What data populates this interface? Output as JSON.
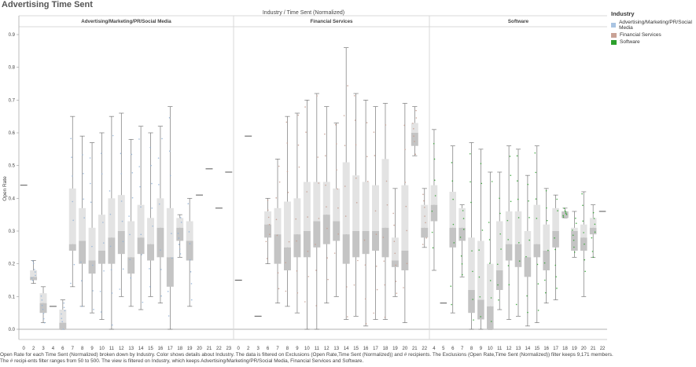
{
  "page_title": "Advertising Time Sent",
  "column_caption": "Industry  /  Time Sent (Normalized)",
  "legend": {
    "title": "Industry",
    "items": [
      {
        "label": "Advertising/Marketing/PR/Social Media",
        "color": "#a9c4e2"
      },
      {
        "label": "Financial Services",
        "color": "#c9a296"
      },
      {
        "label": "Software",
        "color": "#2ca02c"
      }
    ]
  },
  "caption": "Open Rate for each Time Sent (Normalized) broken down by Industry.  Color shows details about Industry. The data is filtered on Exclusions (Open Rate,Time Sent (Normalized)) and # recipients. The Exclusions (Open Rate,Time Sent (Normalized)) filter keeps 9,171 members. The # recipi-ents filter ranges from 50 to 500. The view is filtered on Industry, which keeps Advertising/Marketing/PR/Social Media, Financial Services and Software.",
  "chart_data": {
    "type": "box",
    "ylabel": "Open Rate",
    "ylim": [
      0,
      0.9
    ],
    "y_ticks": [
      "0.0",
      "0.1",
      "0.2",
      "0.3",
      "0.4",
      "0.5",
      "0.6",
      "0.7",
      "0.8",
      "0.9"
    ],
    "grid": false,
    "panels": [
      {
        "name": "Advertising/Marketing/PR/Social Media",
        "color": "#8fb0d6",
        "boxes": [
          {
            "x": "0",
            "single": 0.44
          },
          {
            "x": "2",
            "min": 0.14,
            "q1": 0.15,
            "median": 0.16,
            "q3": 0.18,
            "max": 0.21
          },
          {
            "x": "3",
            "min": 0.02,
            "q1": 0.05,
            "median": 0.08,
            "q3": 0.11,
            "max": 0.13
          },
          {
            "x": "4",
            "single": 0.07
          },
          {
            "x": "6",
            "min": 0.0,
            "q1": 0.0,
            "median": 0.02,
            "q3": 0.06,
            "max": 0.09
          },
          {
            "x": "7",
            "min": 0.13,
            "q1": 0.24,
            "median": 0.26,
            "q3": 0.43,
            "max": 0.65
          },
          {
            "x": "8",
            "min": 0.07,
            "q1": 0.2,
            "median": 0.27,
            "q3": 0.37,
            "max": 0.59
          },
          {
            "x": "9",
            "min": 0.05,
            "q1": 0.17,
            "median": 0.21,
            "q3": 0.31,
            "max": 0.57
          },
          {
            "x": "10",
            "min": 0.03,
            "q1": 0.2,
            "median": 0.24,
            "q3": 0.35,
            "max": 0.6
          },
          {
            "x": "11",
            "min": 0.0,
            "q1": 0.2,
            "median": 0.28,
            "q3": 0.4,
            "max": 0.65
          },
          {
            "x": "12",
            "min": 0.1,
            "q1": 0.23,
            "median": 0.3,
            "q3": 0.41,
            "max": 0.66
          },
          {
            "x": "13",
            "min": 0.07,
            "q1": 0.17,
            "median": 0.22,
            "q3": 0.33,
            "max": 0.58
          },
          {
            "x": "14",
            "min": 0.06,
            "q1": 0.23,
            "median": 0.28,
            "q3": 0.38,
            "max": 0.62
          },
          {
            "x": "15",
            "min": 0.1,
            "q1": 0.21,
            "median": 0.26,
            "q3": 0.34,
            "max": 0.6
          },
          {
            "x": "16",
            "min": 0.08,
            "q1": 0.22,
            "median": 0.31,
            "q3": 0.4,
            "max": 0.62
          },
          {
            "x": "17",
            "min": 0.0,
            "q1": 0.13,
            "median": 0.22,
            "q3": 0.37,
            "max": 0.68
          },
          {
            "x": "18",
            "min": 0.22,
            "q1": 0.27,
            "median": 0.31,
            "q3": 0.34,
            "max": 0.35
          },
          {
            "x": "19",
            "min": 0.07,
            "q1": 0.21,
            "median": 0.27,
            "q3": 0.33,
            "max": 0.4
          },
          {
            "x": "20",
            "single": 0.41
          },
          {
            "x": "21",
            "single": 0.49
          },
          {
            "x": "22",
            "single": 0.37
          },
          {
            "x": "23",
            "single": 0.48
          }
        ]
      },
      {
        "name": "Financial Services",
        "color": "#c49a8c",
        "boxes": [
          {
            "x": "0",
            "single": 0.15
          },
          {
            "x": "2",
            "single": 0.59
          },
          {
            "x": "3",
            "single": 0.04
          },
          {
            "x": "6",
            "min": 0.2,
            "q1": 0.28,
            "median": 0.32,
            "q3": 0.36,
            "max": 0.4
          },
          {
            "x": "7",
            "min": 0.08,
            "q1": 0.2,
            "median": 0.29,
            "q3": 0.37,
            "max": 0.52
          },
          {
            "x": "8",
            "min": 0.07,
            "q1": 0.18,
            "median": 0.25,
            "q3": 0.39,
            "max": 0.65
          },
          {
            "x": "9",
            "min": 0.05,
            "q1": 0.22,
            "median": 0.29,
            "q3": 0.4,
            "max": 0.66
          },
          {
            "x": "10",
            "min": 0.0,
            "q1": 0.22,
            "median": 0.3,
            "q3": 0.45,
            "max": 0.7
          },
          {
            "x": "11",
            "min": 0.0,
            "q1": 0.25,
            "median": 0.33,
            "q3": 0.45,
            "max": 0.72
          },
          {
            "x": "12",
            "min": 0.08,
            "q1": 0.26,
            "median": 0.35,
            "q3": 0.45,
            "max": 0.68
          },
          {
            "x": "13",
            "min": 0.1,
            "q1": 0.27,
            "median": 0.33,
            "q3": 0.43,
            "max": 0.63
          },
          {
            "x": "14",
            "min": 0.03,
            "q1": 0.2,
            "median": 0.29,
            "q3": 0.51,
            "max": 0.86
          },
          {
            "x": "15",
            "min": 0.04,
            "q1": 0.22,
            "median": 0.3,
            "q3": 0.47,
            "max": 0.72
          },
          {
            "x": "16",
            "min": 0.01,
            "q1": 0.23,
            "median": 0.3,
            "q3": 0.45,
            "max": 0.7
          },
          {
            "x": "17",
            "min": 0.03,
            "q1": 0.24,
            "median": 0.3,
            "q3": 0.44,
            "max": 0.68
          },
          {
            "x": "18",
            "min": 0.03,
            "q1": 0.22,
            "median": 0.31,
            "q3": 0.52,
            "max": 0.69
          },
          {
            "x": "19",
            "min": 0.1,
            "q1": 0.19,
            "median": 0.21,
            "q3": 0.28,
            "max": 0.43
          },
          {
            "x": "20",
            "min": 0.02,
            "q1": 0.18,
            "median": 0.24,
            "q3": 0.44,
            "max": 0.69
          },
          {
            "x": "21",
            "min": 0.53,
            "q1": 0.56,
            "median": 0.6,
            "q3": 0.63,
            "max": 0.68
          },
          {
            "x": "22",
            "min": 0.25,
            "q1": 0.28,
            "median": 0.31,
            "q3": 0.38,
            "max": 0.43
          }
        ]
      },
      {
        "name": "Software",
        "color": "#2ca02c",
        "boxes": [
          {
            "x": "4",
            "min": 0.18,
            "q1": 0.33,
            "median": 0.38,
            "q3": 0.44,
            "max": 0.61
          },
          {
            "x": "5",
            "single": 0.08
          },
          {
            "x": "6",
            "min": 0.05,
            "q1": 0.25,
            "median": 0.31,
            "q3": 0.42,
            "max": 0.56
          },
          {
            "x": "7",
            "min": 0.16,
            "q1": 0.27,
            "median": 0.31,
            "q3": 0.37,
            "max": 0.38
          },
          {
            "x": "8",
            "min": 0.0,
            "q1": 0.05,
            "median": 0.12,
            "q3": 0.28,
            "max": 0.57
          },
          {
            "x": "9",
            "min": 0.0,
            "q1": 0.03,
            "median": 0.09,
            "q3": 0.27,
            "max": 0.55
          },
          {
            "x": "10",
            "min": 0.0,
            "q1": 0.0,
            "median": 0.07,
            "q3": 0.2,
            "max": 0.48
          },
          {
            "x": "11",
            "min": 0.06,
            "q1": 0.12,
            "median": 0.18,
            "q3": 0.33,
            "max": 0.48
          },
          {
            "x": "12",
            "min": 0.03,
            "q1": 0.21,
            "median": 0.26,
            "q3": 0.36,
            "max": 0.56
          },
          {
            "x": "13",
            "min": 0.04,
            "q1": 0.19,
            "median": 0.26,
            "q3": 0.36,
            "max": 0.55
          },
          {
            "x": "14",
            "min": 0.01,
            "q1": 0.16,
            "median": 0.22,
            "q3": 0.3,
            "max": 0.47
          },
          {
            "x": "15",
            "min": 0.02,
            "q1": 0.22,
            "median": 0.26,
            "q3": 0.38,
            "max": 0.56
          },
          {
            "x": "16",
            "min": 0.08,
            "q1": 0.18,
            "median": 0.24,
            "q3": 0.32,
            "max": 0.43
          },
          {
            "x": "17",
            "min": 0.09,
            "q1": 0.25,
            "median": 0.3,
            "q3": 0.37,
            "max": 0.41
          },
          {
            "x": "18",
            "min": 0.34,
            "q1": 0.34,
            "median": 0.36,
            "q3": 0.36,
            "max": 0.37
          },
          {
            "x": "19",
            "min": 0.22,
            "q1": 0.24,
            "median": 0.3,
            "q3": 0.31,
            "max": 0.36
          },
          {
            "x": "20",
            "min": 0.1,
            "q1": 0.24,
            "median": 0.28,
            "q3": 0.32,
            "max": 0.42
          },
          {
            "x": "21",
            "min": 0.22,
            "q1": 0.29,
            "median": 0.31,
            "q3": 0.34,
            "max": 0.38
          },
          {
            "x": "22",
            "single": 0.36
          }
        ]
      }
    ]
  }
}
